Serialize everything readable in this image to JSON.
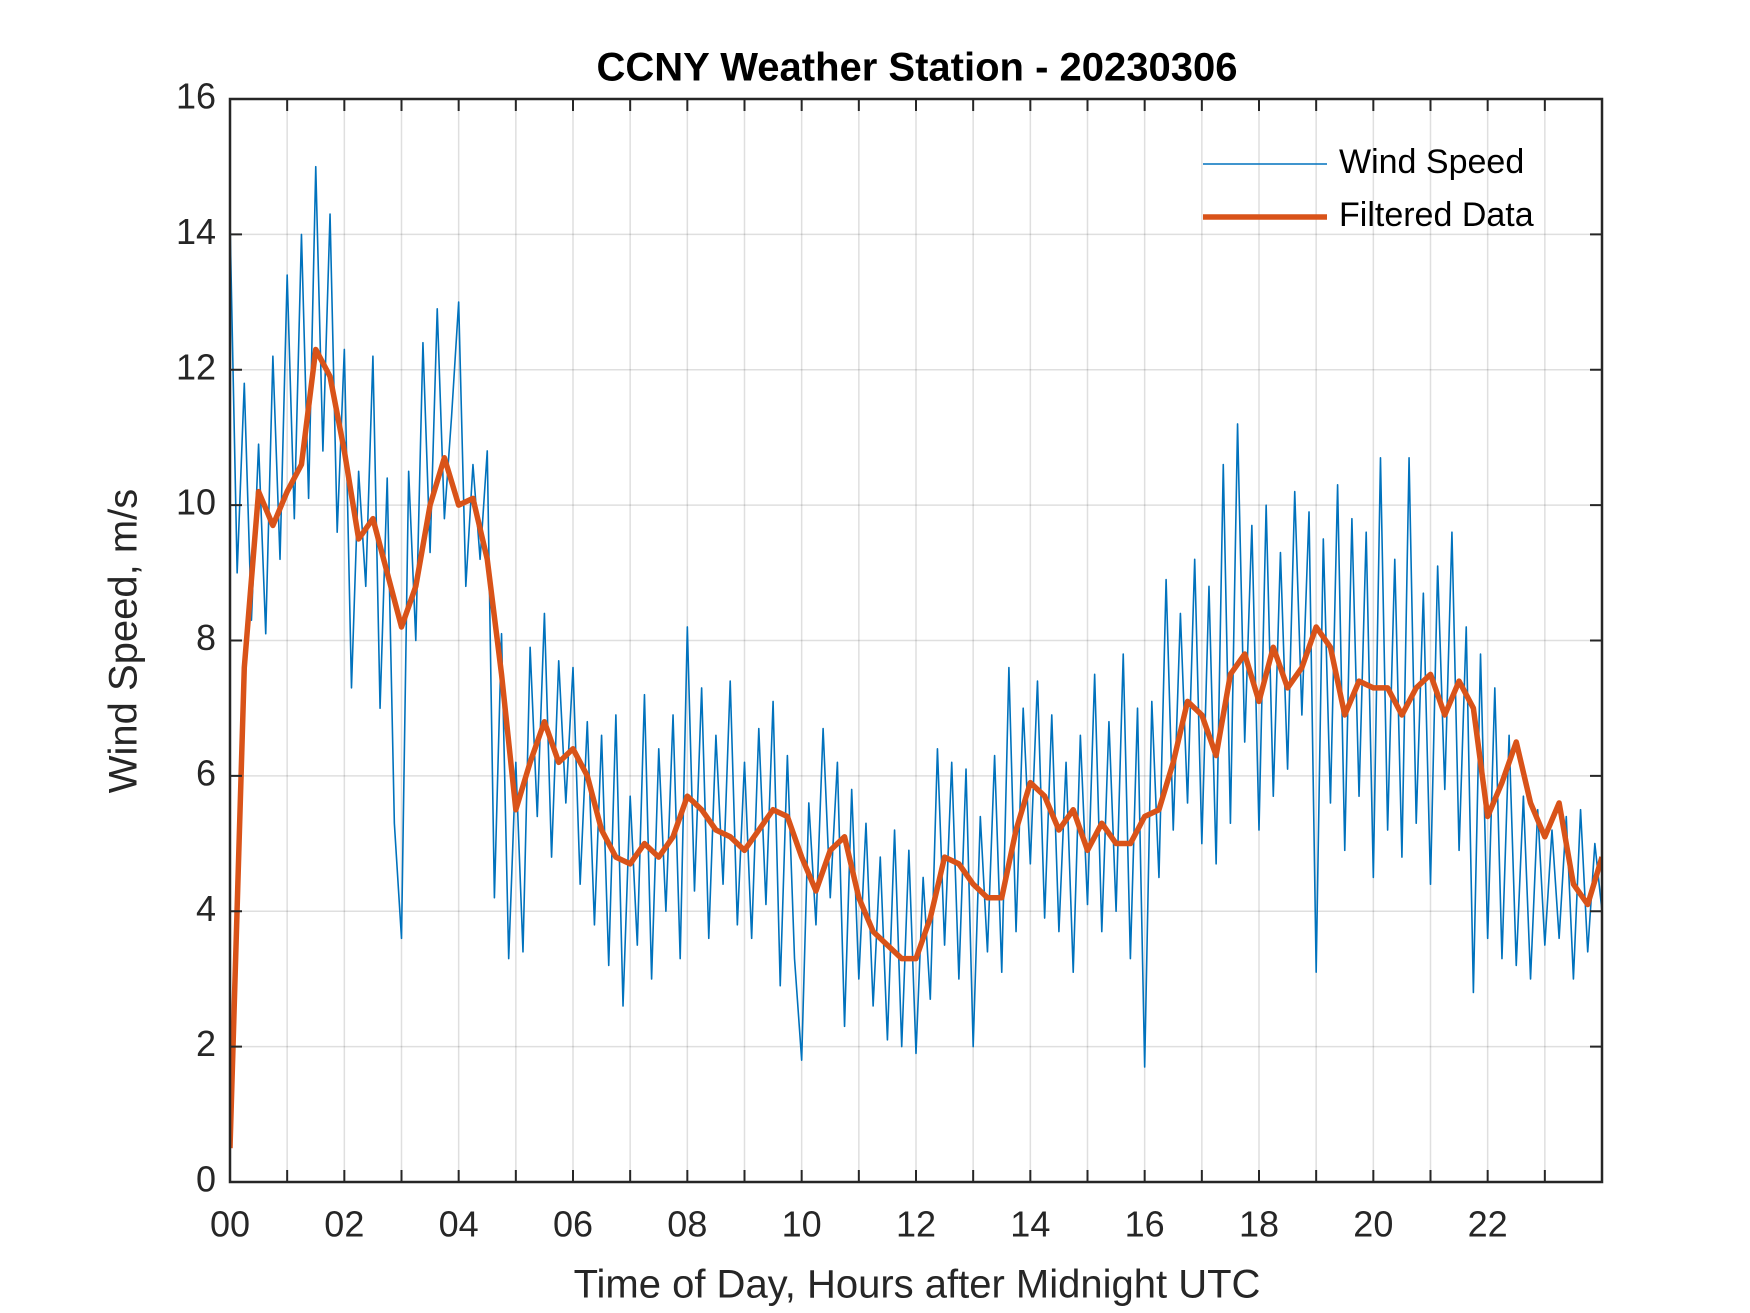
{
  "chart_data": {
    "type": "line",
    "title": "CCNY Weather Station - 20230306",
    "xlabel": "Time of Day, Hours after Midnight UTC",
    "ylabel": "Wind Speed, m/s",
    "xlim": [
      0,
      24
    ],
    "ylim": [
      0,
      16
    ],
    "xticks": [
      {
        "value": 0,
        "label": "00"
      },
      {
        "value": 2,
        "label": "02"
      },
      {
        "value": 4,
        "label": "04"
      },
      {
        "value": 6,
        "label": "06"
      },
      {
        "value": 8,
        "label": "08"
      },
      {
        "value": 10,
        "label": "10"
      },
      {
        "value": 12,
        "label": "12"
      },
      {
        "value": 14,
        "label": "14"
      },
      {
        "value": 16,
        "label": "16"
      },
      {
        "value": 18,
        "label": "18"
      },
      {
        "value": 20,
        "label": "20"
      },
      {
        "value": 22,
        "label": "22"
      }
    ],
    "xminor": [
      1,
      3,
      5,
      7,
      9,
      11,
      13,
      15,
      17,
      19,
      21,
      23
    ],
    "yticks": [
      0,
      2,
      4,
      6,
      8,
      10,
      12,
      14,
      16
    ],
    "grid": true,
    "legend": "northeast",
    "series": [
      {
        "name": "Wind Speed",
        "color": "#0072bd",
        "x": [
          0,
          0.125,
          0.25,
          0.375,
          0.5,
          0.625,
          0.75,
          0.875,
          1,
          1.125,
          1.25,
          1.375,
          1.5,
          1.625,
          1.75,
          1.875,
          2,
          2.125,
          2.25,
          2.375,
          2.5,
          2.625,
          2.75,
          2.875,
          3,
          3.125,
          3.25,
          3.375,
          3.5,
          3.625,
          3.75,
          3.875,
          4,
          4.125,
          4.25,
          4.375,
          4.5,
          4.625,
          4.75,
          4.875,
          5,
          5.125,
          5.25,
          5.375,
          5.5,
          5.625,
          5.75,
          5.875,
          6,
          6.125,
          6.25,
          6.375,
          6.5,
          6.625,
          6.75,
          6.875,
          7,
          7.125,
          7.25,
          7.375,
          7.5,
          7.625,
          7.75,
          7.875,
          8,
          8.125,
          8.25,
          8.375,
          8.5,
          8.625,
          8.75,
          8.875,
          9,
          9.125,
          9.25,
          9.375,
          9.5,
          9.625,
          9.75,
          9.875,
          10,
          10.125,
          10.25,
          10.375,
          10.5,
          10.625,
          10.75,
          10.875,
          11,
          11.125,
          11.25,
          11.375,
          11.5,
          11.625,
          11.75,
          11.875,
          12,
          12.125,
          12.25,
          12.375,
          12.5,
          12.625,
          12.75,
          12.875,
          13,
          13.125,
          13.25,
          13.375,
          13.5,
          13.625,
          13.75,
          13.875,
          14,
          14.125,
          14.25,
          14.375,
          14.5,
          14.625,
          14.75,
          14.875,
          15,
          15.125,
          15.25,
          15.375,
          15.5,
          15.625,
          15.75,
          15.875,
          16,
          16.125,
          16.25,
          16.375,
          16.5,
          16.625,
          16.75,
          16.875,
          17,
          17.125,
          17.25,
          17.375,
          17.5,
          17.625,
          17.75,
          17.875,
          18,
          18.125,
          18.25,
          18.375,
          18.5,
          18.625,
          18.75,
          18.875,
          19,
          19.125,
          19.25,
          19.375,
          19.5,
          19.625,
          19.75,
          19.875,
          20,
          20.125,
          20.25,
          20.375,
          20.5,
          20.625,
          20.75,
          20.875,
          21,
          21.125,
          21.25,
          21.375,
          21.5,
          21.625,
          21.75,
          21.875,
          22,
          22.125,
          22.25,
          22.375,
          22.5,
          22.625,
          22.75,
          22.875,
          23,
          23.125,
          23.25,
          23.375,
          23.5,
          23.625,
          23.75,
          23.875,
          24
        ],
        "values": [
          14.2,
          9.0,
          11.8,
          8.3,
          10.9,
          8.1,
          12.2,
          9.2,
          13.4,
          9.8,
          14.0,
          10.1,
          15.0,
          10.8,
          14.3,
          9.6,
          12.3,
          7.3,
          10.5,
          8.8,
          12.2,
          7.0,
          10.4,
          5.3,
          3.6,
          10.5,
          8.0,
          12.4,
          9.3,
          12.9,
          9.8,
          11.3,
          13.0,
          8.8,
          10.6,
          9.2,
          10.8,
          4.2,
          8.1,
          3.3,
          6.2,
          3.4,
          7.9,
          5.4,
          8.4,
          4.8,
          7.7,
          5.6,
          7.6,
          4.4,
          6.8,
          3.8,
          6.6,
          3.2,
          6.9,
          2.6,
          5.7,
          3.5,
          7.2,
          3.0,
          6.4,
          4.0,
          6.9,
          3.3,
          8.2,
          4.3,
          7.3,
          3.6,
          6.6,
          4.4,
          7.4,
          3.8,
          6.2,
          3.6,
          6.7,
          4.1,
          7.1,
          2.9,
          6.3,
          3.3,
          1.8,
          5.6,
          3.8,
          6.7,
          4.2,
          6.2,
          2.3,
          5.8,
          3.0,
          5.3,
          2.6,
          4.8,
          2.1,
          5.2,
          2.0,
          4.9,
          1.9,
          4.5,
          2.7,
          6.4,
          3.5,
          6.2,
          3.0,
          6.1,
          2.0,
          5.4,
          3.4,
          6.3,
          3.1,
          7.6,
          3.7,
          7.0,
          4.7,
          7.4,
          3.9,
          6.9,
          3.7,
          6.2,
          3.1,
          6.6,
          4.1,
          7.5,
          3.7,
          6.8,
          4.0,
          7.8,
          3.3,
          7.0,
          1.7,
          7.1,
          4.5,
          8.9,
          5.2,
          8.4,
          5.6,
          9.2,
          5.0,
          8.8,
          4.7,
          10.6,
          5.3,
          11.2,
          6.5,
          9.7,
          5.2,
          10.0,
          5.7,
          9.3,
          6.1,
          10.2,
          6.9,
          9.9,
          3.1,
          9.5,
          5.6,
          10.3,
          4.9,
          9.8,
          5.7,
          9.6,
          4.5,
          10.7,
          5.2,
          9.2,
          4.8,
          10.7,
          5.3,
          8.7,
          4.4,
          9.1,
          5.8,
          9.6,
          4.9,
          8.2,
          2.8,
          7.8,
          3.6,
          7.3,
          3.3,
          6.6,
          3.2,
          5.7,
          3.0,
          5.5,
          3.5,
          5.2,
          3.6,
          5.4,
          3.0,
          5.5,
          3.4,
          5.0,
          4.0
        ]
      },
      {
        "name": "Filtered Data",
        "color": "#d95319",
        "x": [
          0,
          0.25,
          0.5,
          0.75,
          1,
          1.25,
          1.5,
          1.75,
          2,
          2.25,
          2.5,
          2.75,
          3,
          3.25,
          3.5,
          3.75,
          4,
          4.25,
          4.5,
          4.75,
          5,
          5.25,
          5.5,
          5.75,
          6,
          6.25,
          6.5,
          6.75,
          7,
          7.25,
          7.5,
          7.75,
          8,
          8.25,
          8.5,
          8.75,
          9,
          9.25,
          9.5,
          9.75,
          10,
          10.25,
          10.5,
          10.75,
          11,
          11.25,
          11.5,
          11.75,
          12,
          12.25,
          12.5,
          12.75,
          13,
          13.25,
          13.5,
          13.75,
          14,
          14.25,
          14.5,
          14.75,
          15,
          15.25,
          15.5,
          15.75,
          16,
          16.25,
          16.5,
          16.75,
          17,
          17.25,
          17.5,
          17.75,
          18,
          18.25,
          18.5,
          18.75,
          19,
          19.25,
          19.5,
          19.75,
          20,
          20.25,
          20.5,
          20.75,
          21,
          21.25,
          21.5,
          21.75,
          22,
          22.25,
          22.5,
          22.75,
          23,
          23.25,
          23.5,
          23.75,
          24
        ],
        "values": [
          0.5,
          7.6,
          10.2,
          9.7,
          10.2,
          10.6,
          12.3,
          11.9,
          10.8,
          9.5,
          9.8,
          9.0,
          8.2,
          8.8,
          10.0,
          10.7,
          10.0,
          10.1,
          9.2,
          7.5,
          5.5,
          6.2,
          6.8,
          6.2,
          6.4,
          6.0,
          5.2,
          4.8,
          4.7,
          5.0,
          4.8,
          5.1,
          5.7,
          5.5,
          5.2,
          5.1,
          4.9,
          5.2,
          5.5,
          5.4,
          4.8,
          4.3,
          4.9,
          5.1,
          4.2,
          3.7,
          3.5,
          3.3,
          3.3,
          3.9,
          4.8,
          4.7,
          4.4,
          4.2,
          4.2,
          5.2,
          5.9,
          5.7,
          5.2,
          5.5,
          4.9,
          5.3,
          5.0,
          5.0,
          5.4,
          5.5,
          6.2,
          7.1,
          6.9,
          6.3,
          7.5,
          7.8,
          7.1,
          7.9,
          7.3,
          7.6,
          8.2,
          7.9,
          6.9,
          7.4,
          7.3,
          7.3,
          6.9,
          7.3,
          7.5,
          6.9,
          7.4,
          7.0,
          5.4,
          5.9,
          6.5,
          5.6,
          5.1,
          5.6,
          4.4,
          4.1,
          4.8
        ]
      }
    ]
  }
}
